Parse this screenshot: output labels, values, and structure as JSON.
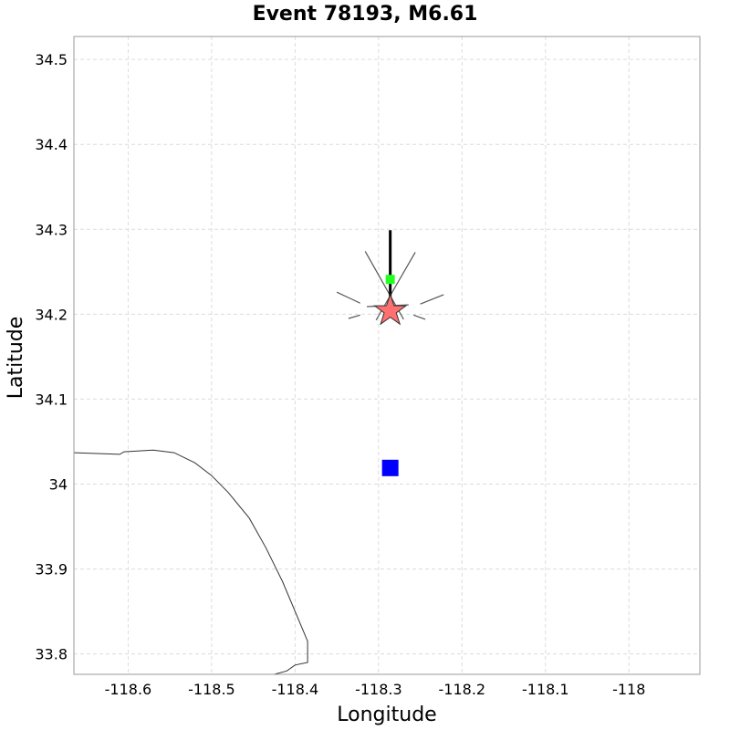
{
  "title": "Event 78193, M6.61",
  "axes": {
    "xlabel": "Longitude",
    "ylabel": "Latitude",
    "xlim": [
      -118.665,
      -117.915
    ],
    "ylim": [
      33.776,
      34.527
    ],
    "xticks": [
      -118.6,
      -118.5,
      -118.4,
      -118.3,
      -118.2,
      -118.1,
      -118.0
    ],
    "xtick_labels": [
      "-118.6",
      "-118.5",
      "-118.4",
      "-118.3",
      "-118.2",
      "-118.1",
      "-118"
    ],
    "yticks": [
      33.8,
      33.9,
      34.0,
      34.1,
      34.2,
      34.3,
      34.4,
      34.5
    ],
    "ytick_labels": [
      "33.8",
      "33.9",
      "34",
      "34.1",
      "34.2",
      "34.3",
      "34.4",
      "34.5"
    ],
    "grid": true
  },
  "map_data": {
    "coastline": [
      [
        -118.665,
        34.037
      ],
      [
        -118.61,
        34.035
      ],
      [
        -118.605,
        34.038
      ],
      [
        -118.57,
        34.04
      ],
      [
        -118.545,
        34.037
      ],
      [
        -118.52,
        34.025
      ],
      [
        -118.5,
        34.01
      ],
      [
        -118.48,
        33.99
      ],
      [
        -118.455,
        33.96
      ],
      [
        -118.435,
        33.925
      ],
      [
        -118.415,
        33.885
      ],
      [
        -118.4,
        33.85
      ],
      [
        -118.385,
        33.815
      ],
      [
        -118.385,
        33.79
      ],
      [
        -118.4,
        33.787
      ],
      [
        -118.41,
        33.78
      ],
      [
        -118.425,
        33.776
      ]
    ],
    "epicenter": {
      "lon": -118.286,
      "lat": 34.204,
      "color": "#ff7070",
      "marker": "star"
    },
    "hypocenter_projection": {
      "lon": -118.286,
      "lat": 34.241,
      "color": "#22ff22",
      "marker": "square"
    },
    "station": {
      "lon": -118.286,
      "lat": 34.019,
      "color": "#0000ff",
      "marker": "square"
    },
    "rupture_trace": [
      [
        -118.286,
        34.299
      ],
      [
        -118.286,
        34.202
      ]
    ],
    "fault_lines": [
      [
        [
          -118.316,
          34.274
        ],
        [
          -118.27,
          34.194
        ]
      ],
      [
        [
          -118.256,
          34.273
        ],
        [
          -118.303,
          34.193
        ]
      ],
      [
        [
          -118.35,
          34.226
        ],
        [
          -118.322,
          34.213
        ]
      ],
      [
        [
          -118.314,
          34.209
        ],
        [
          -118.264,
          34.211
        ]
      ],
      [
        [
          -118.222,
          34.223
        ],
        [
          -118.25,
          34.212
        ]
      ],
      [
        [
          -118.336,
          34.195
        ],
        [
          -118.322,
          34.199
        ]
      ],
      [
        [
          -118.244,
          34.194
        ],
        [
          -118.258,
          34.199
        ]
      ],
      [
        [
          -118.286,
          34.274
        ],
        [
          -118.286,
          34.203
        ]
      ]
    ]
  }
}
